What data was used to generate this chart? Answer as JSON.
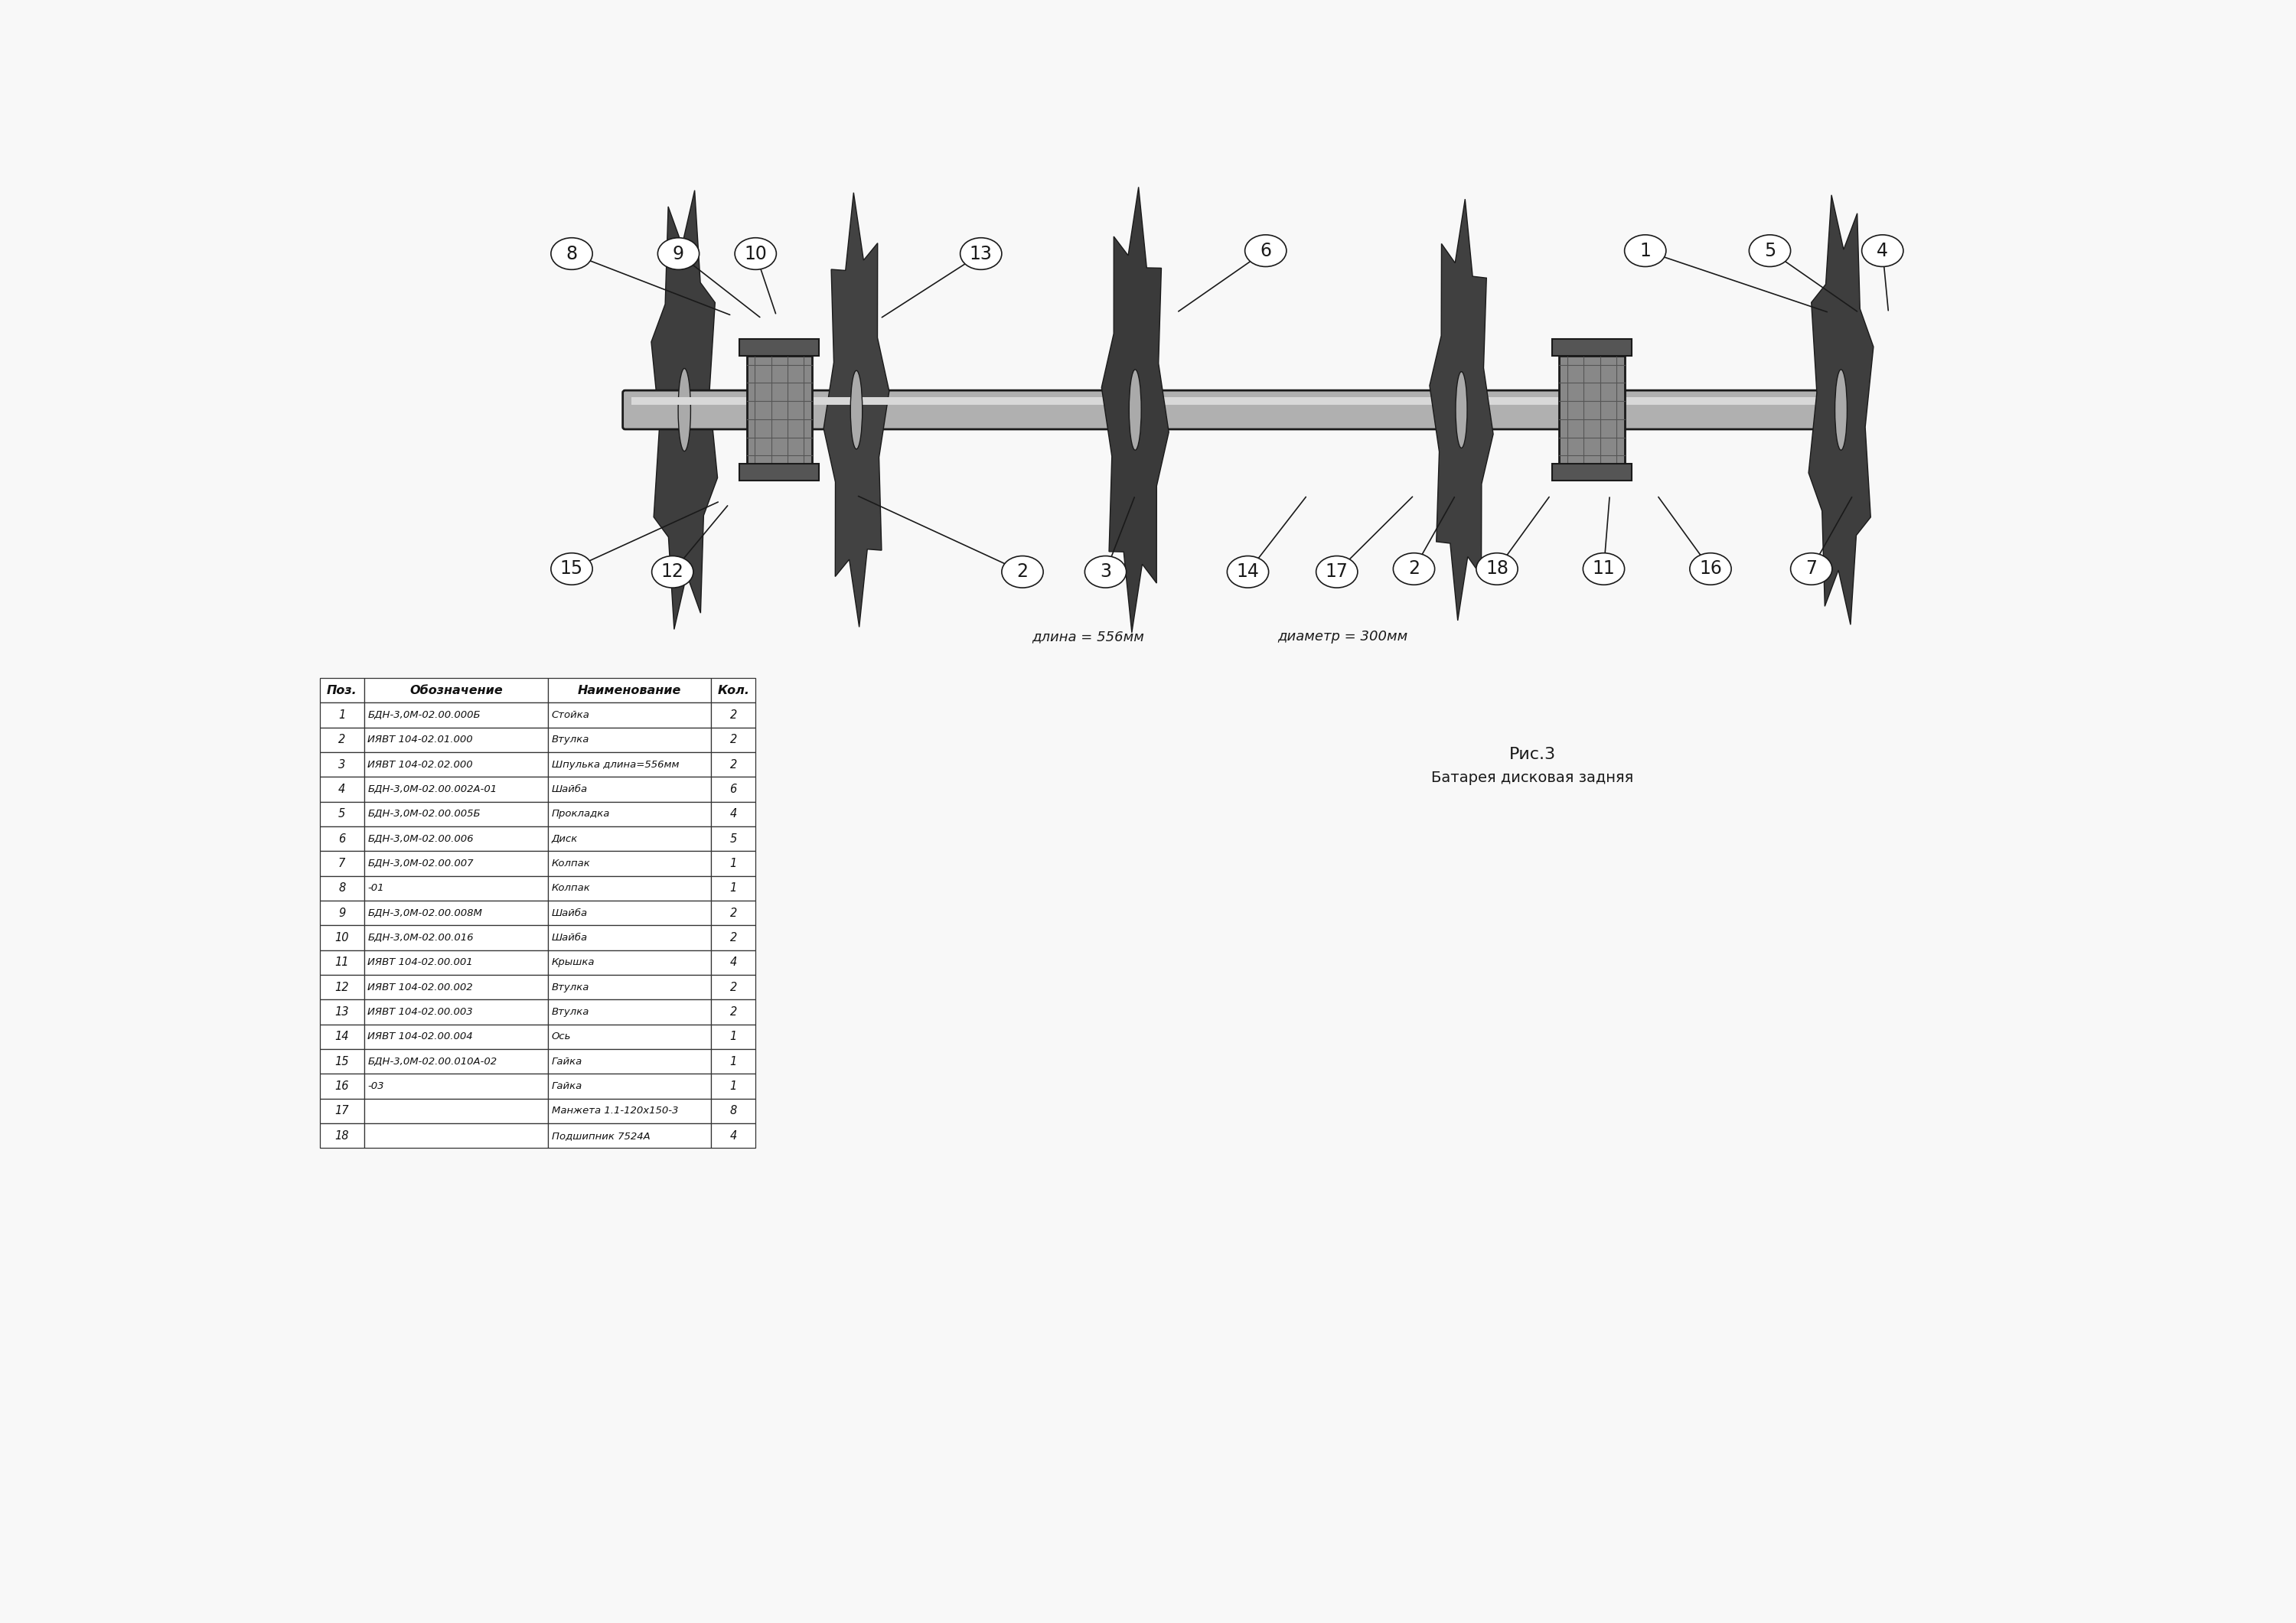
{
  "bg_color": "#f8f8f8",
  "dark": "#1a1a1a",
  "disk_color": "#4a4a4a",
  "shaft_color": "#b0b0b0",
  "housing_color": "#888888",
  "title_fig": "Рис.3",
  "title_desc": "Батарея дисковая задняя",
  "annotation1": "длина = 556мм",
  "annotation2": "диаметр = 300мм",
  "table_headers": [
    "Поз.",
    "Обозначение",
    "Наименование",
    "Кол."
  ],
  "table_rows": [
    [
      "1",
      "БДН-3,0М-02.00.000Б",
      "Стойка",
      "2"
    ],
    [
      "2",
      "ИЯВТ 104-02.01.000",
      "Втулка",
      "2"
    ],
    [
      "3",
      "ИЯВТ 104-02.02.000",
      "Шпулька длина=556мм",
      "2"
    ],
    [
      "4",
      "БДН-3,0М-02.00.002А-01",
      "Шайба",
      "6"
    ],
    [
      "5",
      "БДН-3,0М-02.00.005Б",
      "Прокладка",
      "4"
    ],
    [
      "6",
      "БДН-3,0М-02.00.006",
      "Диск",
      "5"
    ],
    [
      "7",
      "БДН-3,0М-02.00.007",
      "Колпак",
      "1"
    ],
    [
      "8",
      "-01",
      "Колпак",
      "1"
    ],
    [
      "9",
      "БДН-3,0М-02.00.008М",
      "Шайба",
      "2"
    ],
    [
      "10",
      "БДН-3,0М-02.00.016",
      "Шайба",
      "2"
    ],
    [
      "11",
      "ИЯВТ 104-02.00.001",
      "Крышка",
      "4"
    ],
    [
      "12",
      "ИЯВТ 104-02.00.002",
      "Втулка",
      "2"
    ],
    [
      "13",
      "ИЯВТ 104-02.00.003",
      "Втулка",
      "2"
    ],
    [
      "14",
      "ИЯВТ 104-02.00.004",
      "Ось",
      "1"
    ],
    [
      "15",
      "БДН-3,0М-02.00.010А-02",
      "Гайка",
      "1"
    ],
    [
      "16",
      "-03",
      "Гайка",
      "1"
    ],
    [
      "17",
      "",
      "Манжета 1.1-120х150-3",
      "8"
    ],
    [
      "18",
      "",
      "Подшипник 7524А",
      "4"
    ]
  ]
}
